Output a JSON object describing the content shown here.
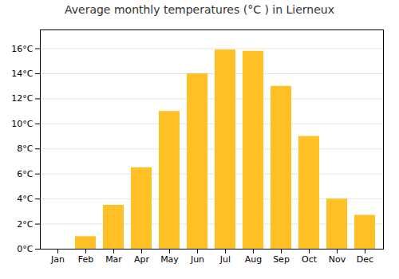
{
  "chart_data": {
    "type": "bar",
    "title": "Average monthly temperatures (°C ) in Lierneux",
    "categories": [
      "Jan",
      "Feb",
      "Mar",
      "Apr",
      "May",
      "Jun",
      "Jul",
      "Aug",
      "Sep",
      "Oct",
      "Nov",
      "Dec"
    ],
    "values": [
      0.0,
      1.0,
      3.5,
      6.5,
      11.0,
      14.0,
      15.9,
      15.8,
      13.0,
      9.0,
      4.0,
      2.7
    ],
    "color": "#FFC125",
    "ylim": [
      0,
      17.5
    ],
    "yticks": [
      {
        "value": 0,
        "label": "0°C"
      },
      {
        "value": 2,
        "label": "2°C"
      },
      {
        "value": 4,
        "label": "4°C"
      },
      {
        "value": 6,
        "label": "6°C"
      },
      {
        "value": 8,
        "label": "8°C"
      },
      {
        "value": 10,
        "label": "10°C"
      },
      {
        "value": 12,
        "label": "12°C"
      },
      {
        "value": 14,
        "label": "14°C"
      },
      {
        "value": 16,
        "label": "16°C"
      }
    ],
    "grid": true
  }
}
